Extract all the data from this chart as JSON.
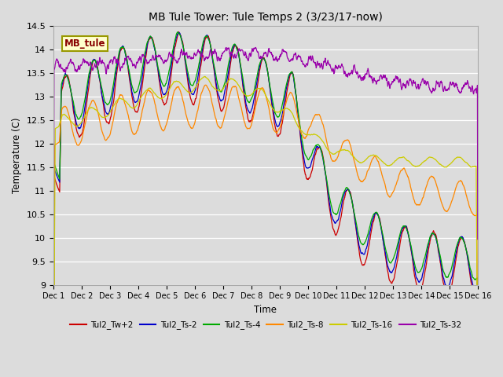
{
  "title": "MB Tule Tower: Tule Temps 2 (3/23/17-now)",
  "xlabel": "Time",
  "ylabel": "Temperature (C)",
  "ylim": [
    9.0,
    14.5
  ],
  "xlim": [
    0,
    15
  ],
  "xtick_labels": [
    "Dec 1",
    "Dec 2",
    "Dec 3",
    "Dec 4",
    "Dec 5",
    "Dec 6",
    "Dec 7",
    "Dec 8",
    "Dec 9",
    "Dec 10",
    "Dec 11",
    "Dec 12",
    "Dec 13",
    "Dec 14",
    "Dec 15",
    "Dec 16"
  ],
  "ytick_vals": [
    9.0,
    9.5,
    10.0,
    10.5,
    11.0,
    11.5,
    12.0,
    12.5,
    13.0,
    13.5,
    14.0,
    14.5
  ],
  "background_color": "#dcdcdc",
  "plot_background": "#dcdcdc",
  "series": [
    {
      "label": "Tul2_Tw+2",
      "color": "#cc0000"
    },
    {
      "label": "Tul2_Ts-2",
      "color": "#0000cc"
    },
    {
      "label": "Tul2_Ts-4",
      "color": "#00aa00"
    },
    {
      "label": "Tul2_Ts-8",
      "color": "#ff8800"
    },
    {
      "label": "Tul2_Ts-16",
      "color": "#cccc00"
    },
    {
      "label": "Tul2_Ts-32",
      "color": "#9900aa"
    }
  ],
  "MB_tule_label": "MB_tule",
  "MB_tule_color": "#880000",
  "MB_tule_bg": "#ffffcc",
  "MB_tule_border": "#999900",
  "grid_color": "#ffffff",
  "figsize": [
    6.4,
    4.8
  ],
  "dpi": 100
}
